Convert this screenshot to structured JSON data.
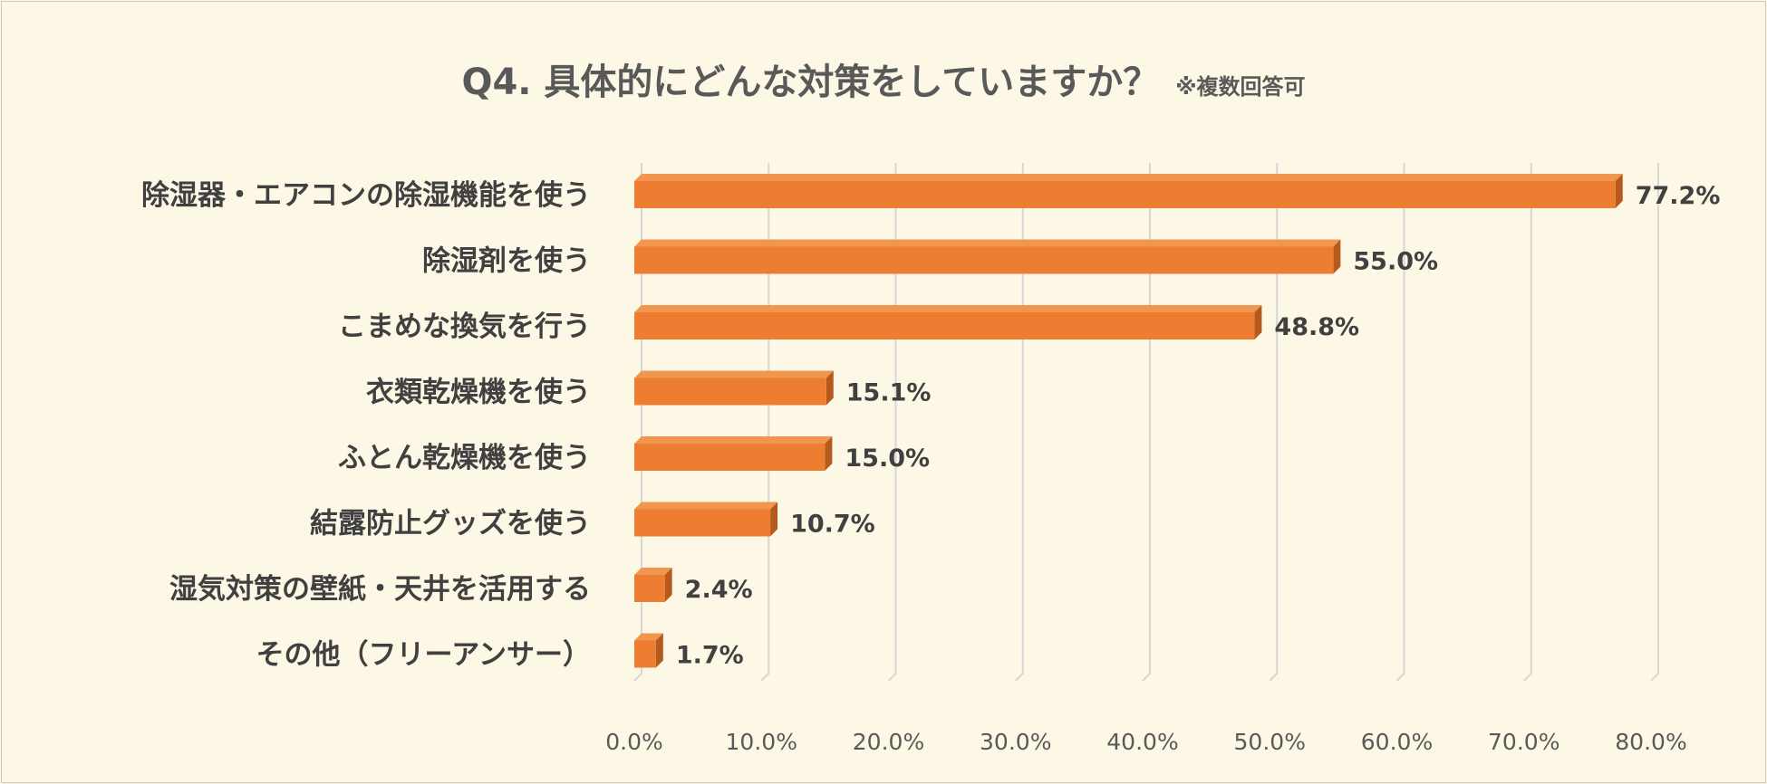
{
  "title": "Q4. 具体的にどんな対策をしていますか？",
  "subtitle": "※複数回答可",
  "colors": {
    "bar_front": "#ed7d31",
    "bar_top": "#f0964f",
    "bar_side": "#b55a1e",
    "grid": "#d6d6d6",
    "background": "#fdf8e5"
  },
  "chart_data": {
    "type": "bar",
    "orientation": "horizontal",
    "categories": [
      "除湿器・エアコンの除湿機能を使う",
      "除湿剤を使う",
      "こまめな換気を行う",
      "衣類乾燥機を使う",
      "ふとん乾燥機を使う",
      "結露防止グッズを使う",
      "湿気対策の壁紙・天井を活用する",
      "その他（フリーアンサー）"
    ],
    "values": [
      77.2,
      55.0,
      48.8,
      15.1,
      15.0,
      10.7,
      2.4,
      1.7
    ],
    "value_labels": [
      "77.2%",
      "55.0%",
      "48.8%",
      "15.1%",
      "15.0%",
      "10.7%",
      "2.4%",
      "1.7%"
    ],
    "xlim": [
      0,
      80
    ],
    "xticks": [
      0,
      10,
      20,
      30,
      40,
      50,
      60,
      70,
      80
    ],
    "xtick_labels": [
      "0.0%",
      "10.0%",
      "20.0%",
      "30.0%",
      "40.0%",
      "50.0%",
      "60.0%",
      "70.0%",
      "80.0%"
    ],
    "grid": true,
    "legend": "none"
  }
}
